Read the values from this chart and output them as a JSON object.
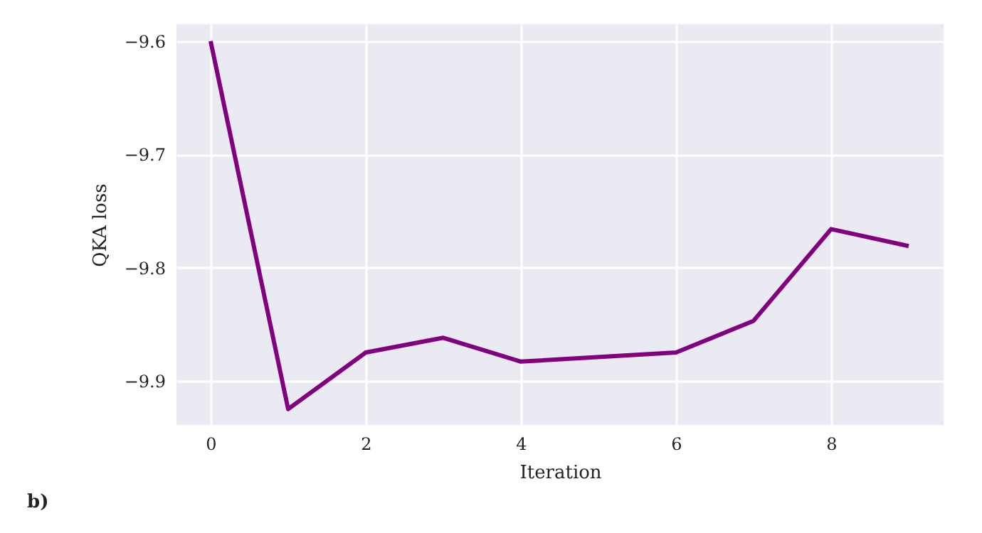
{
  "chart_data": {
    "type": "line",
    "xlabel": "Iteration",
    "ylabel": "QKA loss",
    "annotations": [
      "b)"
    ],
    "x": [
      0,
      1,
      2,
      3,
      4,
      6,
      7,
      8,
      9
    ],
    "series": [
      {
        "color": "#800080",
        "values": [
          -9.6,
          -9.925,
          -9.875,
          -9.862,
          -9.883,
          -9.875,
          -9.847,
          -9.766,
          -9.781
        ]
      }
    ],
    "xlim": [
      -0.44,
      9.45
    ],
    "xticks": [
      0,
      2,
      4,
      6,
      8
    ],
    "ylim": [
      -9.939,
      -9.585
    ],
    "yticks": [
      -9.9,
      -9.8,
      -9.7,
      -9.6
    ],
    "grid": true,
    "marker": "none",
    "line_style": "solid"
  }
}
